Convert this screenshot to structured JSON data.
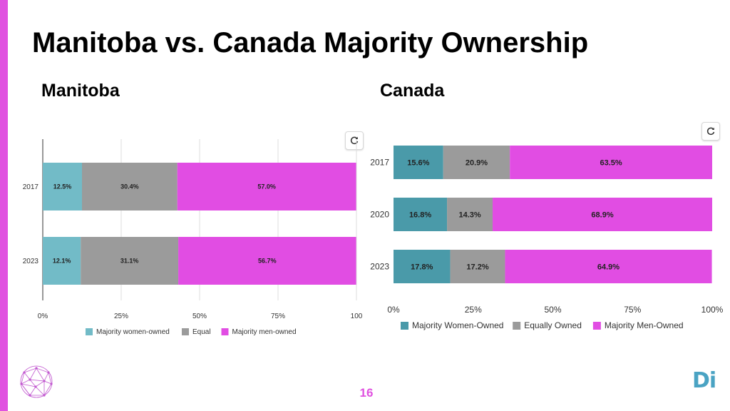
{
  "slide": {
    "title": "Manitoba vs. Canada Majority Ownership",
    "page_number": "16",
    "logo_text": "Di",
    "accent_color": "#e052e0"
  },
  "manitoba": {
    "title": "Manitoba",
    "refresh_icon": "refresh-icon"
  },
  "canada": {
    "title": "Canada",
    "refresh_icon": "refresh-icon"
  },
  "chart_data": [
    {
      "type": "bar",
      "orientation": "horizontal",
      "stacked": true,
      "categories": [
        "2017",
        "2023"
      ],
      "series": [
        {
          "name": "Majority women-owned",
          "values": [
            12.5,
            12.1
          ],
          "labels": [
            "12.5%",
            "12.1%"
          ],
          "color": "#72bbc7"
        },
        {
          "name": "Equal",
          "values": [
            30.4,
            31.1
          ],
          "labels": [
            "30.4%",
            "31.1%"
          ],
          "color": "#9b9b9b"
        },
        {
          "name": "Majority men-owned",
          "values": [
            57.0,
            56.7
          ],
          "labels": [
            "57.0%",
            "56.7%"
          ],
          "color": "#e14de3"
        }
      ],
      "xlim": [
        0,
        100
      ],
      "xticks": [
        "0%",
        "25%",
        "50%",
        "75%",
        "100"
      ],
      "grid": true,
      "legend": "bottom"
    },
    {
      "type": "bar",
      "orientation": "horizontal",
      "stacked": true,
      "categories": [
        "2017",
        "2020",
        "2023"
      ],
      "series": [
        {
          "name": "Majority Women-Owned",
          "values": [
            15.6,
            16.8,
            17.8
          ],
          "labels": [
            "15.6%",
            "16.8%",
            "17.8%"
          ],
          "color": "#4a9aa9"
        },
        {
          "name": "Equally Owned",
          "values": [
            20.9,
            14.3,
            17.2
          ],
          "labels": [
            "20.9%",
            "14.3%",
            "17.2%"
          ],
          "color": "#9b9b9b"
        },
        {
          "name": "Majority Men-Owned",
          "values": [
            63.5,
            68.9,
            64.9
          ],
          "labels": [
            "63.5%",
            "68.9%",
            "64.9%"
          ],
          "color": "#e14de3"
        }
      ],
      "xlim": [
        0,
        100
      ],
      "xticks": [
        "0%",
        "25%",
        "50%",
        "75%",
        "100%"
      ],
      "grid": false,
      "legend": "bottom"
    }
  ]
}
